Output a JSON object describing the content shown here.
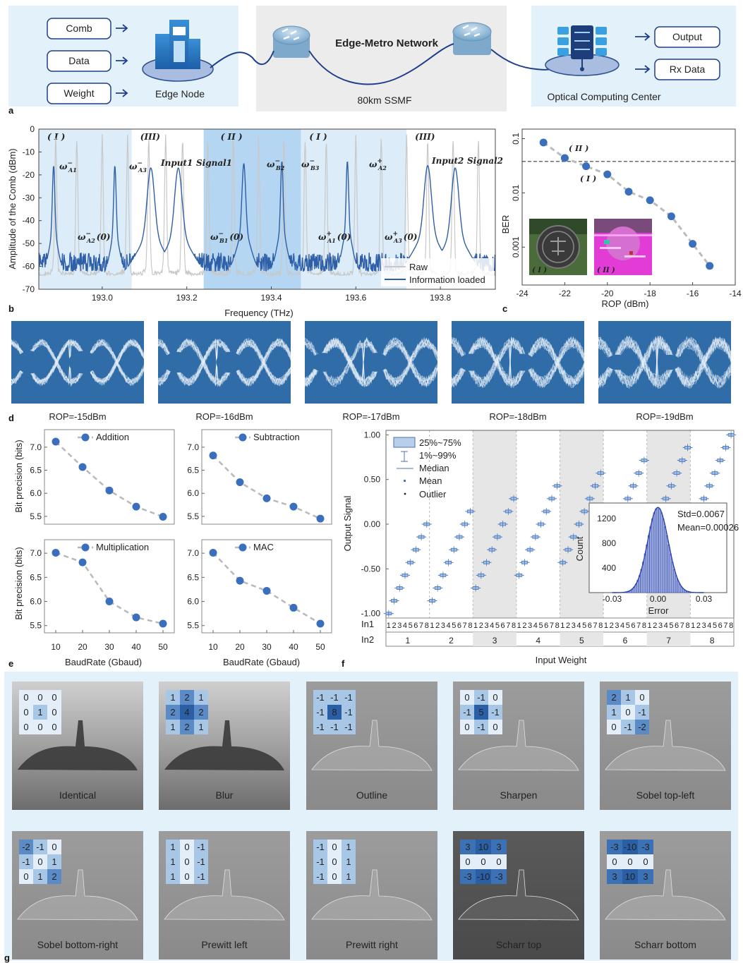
{
  "panel_labels": {
    "a": "a",
    "b": "b",
    "c": "c",
    "d": "d",
    "e": "e",
    "f": "f",
    "g": "g"
  },
  "network": {
    "inputs": [
      "Comb",
      "Data",
      "Weight"
    ],
    "edge_node": "Edge Node",
    "metro_title": "Edge-Metro Network",
    "fiber": "80km SSMF",
    "center": "Optical Computing Center",
    "outputs": [
      "Output",
      "Rx Data"
    ],
    "colors": {
      "panel_bg": "#e3f1fa",
      "metro_bg": "#ececec",
      "title": "#e07b28",
      "line": "#1f3f8a"
    }
  },
  "spectrum": {
    "ylabel": "Amplitude of the Comb (dBm)",
    "xlabel": "Frequency (THz)",
    "yticks": [
      "0",
      "-10",
      "-20",
      "-30",
      "-40",
      "-50",
      "-60",
      "-70"
    ],
    "xticks": [
      "193.0",
      "193.2",
      "193.4",
      "193.6",
      "193.8"
    ],
    "regions": [
      "( I )",
      "(III)",
      "( II )",
      "( I )",
      "(III)"
    ],
    "peak_labels": [
      {
        "base": "ω",
        "sup": "−",
        "sub": "A1"
      },
      {
        "base": "ω",
        "sup": "−",
        "sub": "A3"
      },
      {
        "base": "Input1",
        "sup": "",
        "sub": ""
      },
      {
        "base": "Signal1",
        "sup": "",
        "sub": ""
      },
      {
        "base": "ω",
        "sup": "−",
        "sub": "B2"
      },
      {
        "base": "ω",
        "sup": "−",
        "sub": "B3"
      },
      {
        "base": "ω",
        "sup": "+",
        "sub": "A2"
      },
      {
        "base": "Input2",
        "sup": "",
        "sub": ""
      },
      {
        "base": "Signal2",
        "sup": "",
        "sub": ""
      }
    ],
    "zero_labels": [
      {
        "base": "ω",
        "sup": "−",
        "sub": "A2",
        "tail": "(0)"
      },
      {
        "base": "ω",
        "sup": "−",
        "sub": "B1",
        "tail": "(0)"
      },
      {
        "base": "ω",
        "sup": "+",
        "sub": "A1",
        "tail": "(0)"
      },
      {
        "base": "ω",
        "sup": "+",
        "sub": "A3",
        "tail": "(0)"
      }
    ],
    "legend": [
      "Raw",
      "Information loaded"
    ],
    "colors": {
      "raw": "#c8c8c8",
      "loaded": "#2f5fa7",
      "shade_light": "#dcecf8",
      "shade_dark": "#b4d6f2"
    }
  },
  "ber": {
    "ylabel": "BER",
    "xlabel": "ROP (dBm)",
    "xticks": [
      "-24",
      "-22",
      "-20",
      "-18",
      "-16",
      "-14"
    ],
    "yticks": [
      "0.1",
      "0.01",
      "0.001"
    ],
    "marks": [
      "( II )",
      "( I )"
    ],
    "inset_labels": [
      "( I )",
      "( II )"
    ],
    "chart_data": {
      "type": "scatter",
      "x": [
        -23,
        -22,
        -21,
        -20,
        -19,
        -18,
        -17,
        -16,
        -15.2
      ],
      "y": [
        0.085,
        0.044,
        0.031,
        0.022,
        0.0105,
        0.0073,
        0.0037,
        0.00115,
        0.00045
      ],
      "threshold": 0.038,
      "xlim": [
        -24,
        -14
      ],
      "ylim": [
        0.0002,
        0.15
      ],
      "log_y": true
    }
  },
  "eyes": {
    "labels": [
      "ROP=-15dBm",
      "ROP=-16dBm",
      "ROP=-17dBm",
      "ROP=-18dBm",
      "ROP=-19dBm"
    ],
    "colors": {
      "bg": "#2f6ca8",
      "trace": "#e8f1f9"
    }
  },
  "precision": {
    "ylabel": "Bit precision (bits)",
    "xlabel": "BaudRate (Gbaud)",
    "xticks": [
      "10",
      "20",
      "30",
      "40",
      "50"
    ],
    "yticks_top": [
      "7.0",
      "6.5",
      "6.0",
      "5.5"
    ],
    "yticks_bottom": [
      "7.0",
      "6.5",
      "6.0",
      "5.5"
    ],
    "chart_data": [
      {
        "type": "line",
        "name": "Addition",
        "x": [
          10,
          20,
          30,
          40,
          50
        ],
        "y": [
          7.12,
          6.57,
          6.06,
          5.71,
          5.49
        ]
      },
      {
        "type": "line",
        "name": "Subtraction",
        "x": [
          10,
          20,
          30,
          40,
          50
        ],
        "y": [
          6.82,
          6.24,
          5.89,
          5.71,
          5.45
        ]
      },
      {
        "type": "line",
        "name": "Multiplication",
        "x": [
          10,
          20,
          30,
          40,
          50
        ],
        "y": [
          7.01,
          6.81,
          6.0,
          5.67,
          5.54
        ]
      },
      {
        "type": "line",
        "name": "MAC",
        "x": [
          10,
          20,
          30,
          40,
          50
        ],
        "y": [
          7.01,
          6.43,
          6.22,
          5.87,
          5.54
        ]
      }
    ]
  },
  "boxplot": {
    "ylabel": "Output Signal",
    "xlabel": "Input Weight",
    "yticks": [
      "1.00",
      "0.50",
      "0.00",
      "-0.50",
      "-1.00"
    ],
    "row_in1": "In1",
    "row_in2": "In2",
    "in1_ticks": [
      "1",
      "2",
      "3",
      "4",
      "5",
      "6",
      "7",
      "8"
    ],
    "in2_ticks": [
      "1",
      "2",
      "3",
      "4",
      "5",
      "6",
      "7",
      "8"
    ],
    "legend": [
      "25%~75%",
      "1%~99%",
      "Median",
      "Mean",
      "Outlier"
    ],
    "chart_data": {
      "type": "box",
      "groups": 8,
      "rule": "value = (in1 - 8 + in2 - 1) / 7",
      "ylim": [
        -1.05,
        1.05
      ]
    },
    "inset": {
      "xlabel": "Error",
      "ylabel": "Count",
      "xticks": [
        "-0.03",
        "0.00",
        "0.03"
      ],
      "yticks": [
        "1200",
        "800",
        "400"
      ],
      "std": "Std=0.0067",
      "mean": "Mean=0.00026",
      "chart_data": {
        "type": "histogram",
        "std": 0.0067,
        "mean": 0.00026,
        "peak_count": 1380
      }
    },
    "colors": {
      "box": "#4a73b8",
      "shade": "#e6e6e6"
    }
  },
  "kernels": [
    {
      "name": "Identical",
      "matrix": [
        [
          "0",
          "0",
          "0"
        ],
        [
          "0",
          "1",
          "0"
        ],
        [
          "0",
          "0",
          "0"
        ]
      ]
    },
    {
      "name": "Blur",
      "matrix": [
        [
          "1",
          "2",
          "1"
        ],
        [
          "2",
          "4",
          "2"
        ],
        [
          "1",
          "2",
          "1"
        ]
      ]
    },
    {
      "name": "Outline",
      "matrix": [
        [
          "-1",
          "-1",
          "-1"
        ],
        [
          "-1",
          "8",
          "-1"
        ],
        [
          "-1",
          "-1",
          "-1"
        ]
      ]
    },
    {
      "name": "Sharpen",
      "matrix": [
        [
          "0",
          "-1",
          "0"
        ],
        [
          "-1",
          "5",
          "-1"
        ],
        [
          "0",
          "-1",
          "0"
        ]
      ]
    },
    {
      "name": "Sobel top-left",
      "matrix": [
        [
          "2",
          "1",
          "0"
        ],
        [
          "1",
          "0",
          "-1"
        ],
        [
          "0",
          "-1",
          "-2"
        ]
      ]
    },
    {
      "name": "Sobel bottom-right",
      "matrix": [
        [
          "-2",
          "-1",
          "0"
        ],
        [
          "-1",
          "0",
          "1"
        ],
        [
          "0",
          "1",
          "2"
        ]
      ]
    },
    {
      "name": "Prewitt left",
      "matrix": [
        [
          "1",
          "0",
          "-1"
        ],
        [
          "1",
          "0",
          "-1"
        ],
        [
          "1",
          "0",
          "-1"
        ]
      ]
    },
    {
      "name": "Prewitt right",
      "matrix": [
        [
          "-1",
          "0",
          "1"
        ],
        [
          "-1",
          "0",
          "1"
        ],
        [
          "-1",
          "0",
          "1"
        ]
      ]
    },
    {
      "name": "Scharr top",
      "matrix": [
        [
          "3",
          "10",
          "3"
        ],
        [
          "0",
          "0",
          "0"
        ],
        [
          "-3",
          "-10",
          "-3"
        ]
      ]
    },
    {
      "name": "Scharr bottom",
      "matrix": [
        [
          "-3",
          "-10",
          "-3"
        ],
        [
          "0",
          "0",
          "0"
        ],
        [
          "3",
          "10",
          "3"
        ]
      ]
    }
  ]
}
